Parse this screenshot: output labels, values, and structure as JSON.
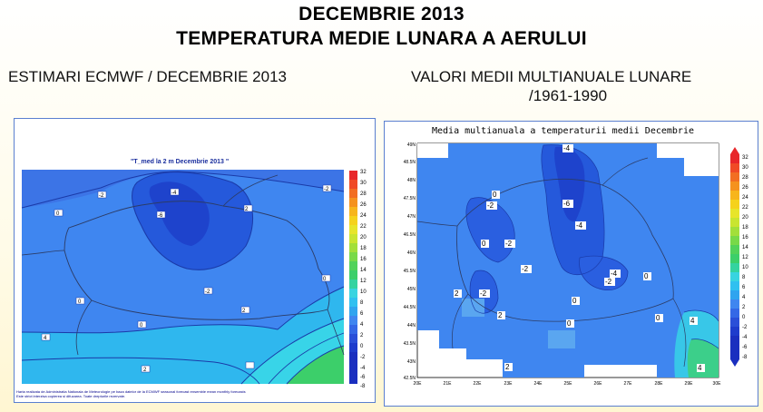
{
  "header": {
    "title_line1": "DECEMBRIE 2013",
    "title_line2": "TEMPERATURA MEDIE LUNARA A AERULUI",
    "left_subtitle": "ESTIMARI ECMWF / DECEMBRIE 2013",
    "right_subtitle_line1": "VALORI MEDII MULTIANUALE LUNARE",
    "right_subtitle_line2": "/1961-1990"
  },
  "left_map": {
    "title": "\"T_med la 2 m Decembrie 2013 \"",
    "colorbar_labels": [
      "32",
      "30",
      "28",
      "26",
      "24",
      "22",
      "20",
      "18",
      "16",
      "14",
      "12",
      "10",
      "8",
      "6",
      "4",
      "2",
      "0",
      "-2",
      "-4",
      "-6",
      "-8"
    ],
    "contour_labels": [
      "-2",
      "-4",
      "-6",
      "0",
      "-2",
      "2",
      "-2",
      "0",
      "0",
      "0",
      "2",
      "4",
      "2"
    ],
    "footer_line1": "Harta realizata de Administratia Nationala de Meteorologie pe baza datelor de la ECMWF seasonal forecast ensemble mean monthly forecasts",
    "footer_line2": "Este strict interzisa copierea si difuzarea. Toate drepturile rezervate."
  },
  "right_map": {
    "title": "Media multianuala a temperaturii medii Decembrie",
    "lat_labels": [
      "49N",
      "48.5N",
      "48N",
      "47.5N",
      "47N",
      "46.5N",
      "46N",
      "45.5N",
      "45N",
      "44.5N",
      "44N",
      "43.5N",
      "43N",
      "42.5N"
    ],
    "lon_labels": [
      "20E",
      "21E",
      "22E",
      "23E",
      "24E",
      "25E",
      "26E",
      "27E",
      "28E",
      "29E",
      "30E"
    ],
    "colorbar_labels": [
      "32",
      "30",
      "28",
      "26",
      "24",
      "22",
      "20",
      "18",
      "16",
      "14",
      "12",
      "10",
      "8",
      "6",
      "4",
      "2",
      "0",
      "-2",
      "-4",
      "-6",
      "-8"
    ],
    "contour_labels": [
      "-4",
      "-2",
      "0",
      "-6",
      "-4",
      "-2",
      "0",
      "-2",
      "-4",
      "-2",
      "0",
      "2",
      "-2",
      "2",
      "0",
      "0",
      "0",
      "4",
      "2",
      "4"
    ]
  },
  "colors": {
    "deep": "#1e4fd6",
    "mid": "#3f86f0",
    "light": "#2fc0f0",
    "cyan": "#40d8e0",
    "green": "#3ccf6a",
    "frame": "#5a7fd0"
  }
}
